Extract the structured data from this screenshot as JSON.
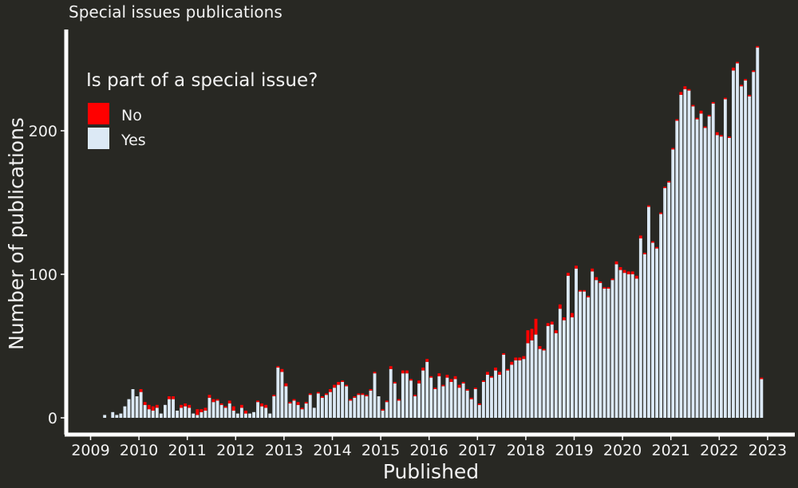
{
  "chart_data": {
    "type": "bar",
    "stacked": true,
    "title": "Special issues publications",
    "xlabel": "Published",
    "ylabel": "Number of publications",
    "x_ticks": [
      "2009",
      "2010",
      "2011",
      "2012",
      "2013",
      "2014",
      "2015",
      "2016",
      "2017",
      "2018",
      "2019",
      "2020",
      "2021",
      "2022",
      "2023"
    ],
    "y_ticks": [
      0,
      100,
      200
    ],
    "ylim": [
      0,
      265
    ],
    "xlim": [
      "2009-01",
      "2023-01"
    ],
    "grid": false,
    "legend": {
      "title": "Is part of a special issue?",
      "position": "top-left",
      "entries": [
        "No",
        "Yes"
      ]
    },
    "colors": {
      "No": "#ff0000",
      "Yes": "#dce9f5",
      "background": "#282823",
      "axis": "#ffffff",
      "text": "#f2f2f2"
    },
    "start_month": "2009-04",
    "series": [
      {
        "name": "Yes",
        "values": [
          2,
          0,
          4,
          2,
          3,
          8,
          13,
          20,
          15,
          18,
          9,
          6,
          5,
          7,
          3,
          9,
          13,
          13,
          5,
          7,
          8,
          7,
          3,
          2,
          4,
          5,
          14,
          11,
          12,
          9,
          7,
          10,
          5,
          3,
          7,
          3,
          3,
          4,
          11,
          8,
          7,
          3,
          15,
          35,
          32,
          22,
          10,
          12,
          9,
          6,
          10,
          16,
          7,
          17,
          14,
          16,
          18,
          21,
          23,
          25,
          22,
          12,
          14,
          16,
          16,
          15,
          19,
          31,
          15,
          5,
          11,
          34,
          24,
          12,
          31,
          31,
          26,
          15,
          24,
          33,
          39,
          28,
          20,
          29,
          22,
          28,
          25,
          27,
          21,
          24,
          19,
          13,
          20,
          9,
          25,
          30,
          28,
          33,
          30,
          44,
          33,
          37,
          40,
          40,
          41,
          52,
          54,
          58,
          48,
          47,
          64,
          65,
          59,
          76,
          68,
          99,
          70,
          104,
          88,
          88,
          84,
          102,
          96,
          94,
          90,
          90,
          96,
          107,
          103,
          101,
          100,
          100,
          97,
          125,
          114,
          147,
          122,
          118,
          142,
          160,
          164,
          187,
          207,
          225,
          229,
          228,
          217,
          208,
          212,
          202,
          210,
          219,
          197,
          196,
          222,
          195,
          242,
          247,
          231,
          235,
          224,
          241,
          258,
          27
        ]
      },
      {
        "name": "No",
        "values": [
          0,
          0,
          0,
          0,
          0,
          0,
          0,
          0,
          0,
          2,
          2,
          3,
          3,
          2,
          0,
          0,
          2,
          2,
          0,
          2,
          2,
          2,
          0,
          4,
          2,
          2,
          2,
          2,
          1,
          1,
          1,
          2,
          3,
          0,
          2,
          2,
          0,
          0,
          1,
          2,
          2,
          0,
          1,
          1,
          2,
          2,
          1,
          1,
          2,
          1,
          1,
          1,
          0,
          1,
          1,
          1,
          2,
          2,
          2,
          1,
          1,
          1,
          1,
          1,
          1,
          1,
          1,
          1,
          0,
          1,
          1,
          2,
          1,
          1,
          2,
          2,
          1,
          1,
          2,
          2,
          2,
          1,
          1,
          2,
          1,
          2,
          2,
          2,
          2,
          1,
          1,
          1,
          1,
          1,
          1,
          2,
          1,
          2,
          2,
          1,
          1,
          2,
          2,
          2,
          2,
          9,
          8,
          11,
          2,
          1,
          2,
          2,
          2,
          3,
          2,
          2,
          3,
          2,
          1,
          1,
          1,
          2,
          2,
          1,
          1,
          1,
          1,
          2,
          2,
          2,
          2,
          2,
          2,
          2,
          1,
          1,
          1,
          1,
          1,
          1,
          1,
          1,
          1,
          2,
          2,
          1,
          1,
          1,
          2,
          1,
          1,
          1,
          2,
          1,
          1,
          1,
          2,
          1,
          1,
          1,
          1,
          1,
          1,
          1
        ]
      }
    ]
  }
}
